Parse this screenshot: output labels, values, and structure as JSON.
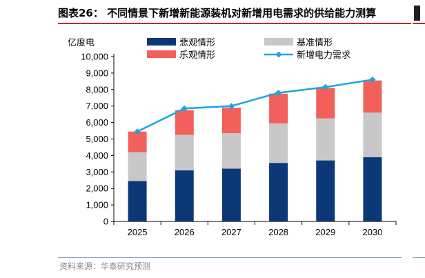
{
  "title": "图表26：  不同情景下新增新能源装机对新增用电需求的供给能力测算",
  "source": "资料来源：华泰研究预测",
  "colors": {
    "pessimistic": "#0c3878",
    "baseline": "#c8c8c8",
    "optimistic": "#f2605c",
    "demand": "#1aa5e0",
    "accent": "#b4302a"
  },
  "chart_data": {
    "type": "bar",
    "stacked": true,
    "unit_label": "亿度电",
    "categories": [
      "2025",
      "2026",
      "2027",
      "2028",
      "2029",
      "2030"
    ],
    "series": [
      {
        "name": "悲观情形",
        "type": "bar",
        "values": [
          2450,
          3100,
          3200,
          3550,
          3700,
          3900
        ]
      },
      {
        "name": "基准情形",
        "type": "bar",
        "values": [
          1750,
          2150,
          2150,
          2400,
          2550,
          2700
        ]
      },
      {
        "name": "乐观情形",
        "type": "bar",
        "values": [
          1250,
          1500,
          1550,
          1800,
          1850,
          1950
        ]
      },
      {
        "name": "新增电力需求",
        "type": "line",
        "values": [
          5450,
          6850,
          7000,
          7800,
          8150,
          8600
        ]
      }
    ],
    "ylim": [
      0,
      10000
    ],
    "yticks": [
      "0",
      "1,000",
      "2,000",
      "3,000",
      "4,000",
      "5,000",
      "6,000",
      "7,000",
      "8,000",
      "9,000",
      "10,000"
    ],
    "legend_position": "top"
  }
}
